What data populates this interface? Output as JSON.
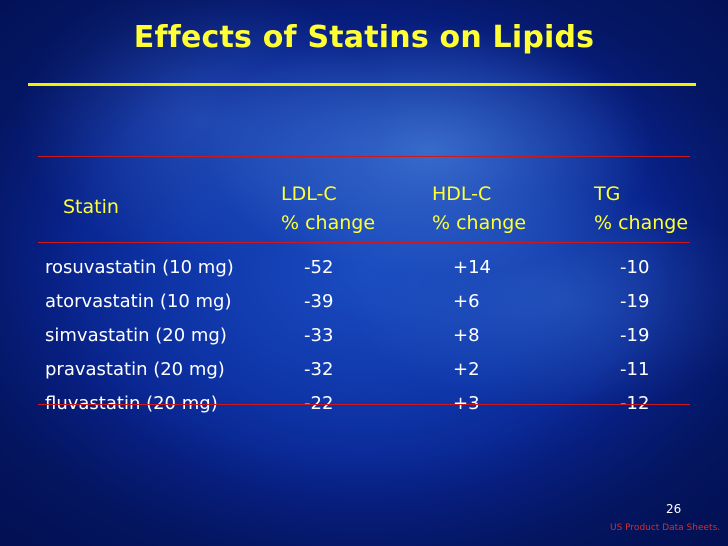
{
  "title": "Effects of Statins on Lipids",
  "table": {
    "headers": {
      "statin": "Statin",
      "ldl": [
        "LDL-C",
        "% change"
      ],
      "hdl": [
        "HDL-C",
        "% change"
      ],
      "tg": [
        "TG",
        "% change"
      ]
    },
    "rows": [
      {
        "name": "rosuvastatin (10 mg)",
        "ldl": "-52",
        "hdl": "+14",
        "tg": "-10"
      },
      {
        "name": "atorvastatin (10 mg)",
        "ldl": "-39",
        "hdl": "+6",
        "tg": "-19"
      },
      {
        "name": "simvastatin (20 mg)",
        "ldl": "-33",
        "hdl": "+8",
        "tg": "-19"
      },
      {
        "name": "pravastatin (20 mg)",
        "ldl": "-32",
        "hdl": "+2",
        "tg": "-11"
      },
      {
        "name": "fluvastatin (20 mg)",
        "ldl": "-22",
        "hdl": "+3",
        "tg": "-12"
      }
    ]
  },
  "footer": {
    "page_number": "26",
    "source": "US Product Data Sheets."
  },
  "colors": {
    "title": "#ffff33",
    "title_rule": "#f4f000",
    "table_rules": "#d01818",
    "source_text": "#d03030",
    "background": "#0e35a8"
  }
}
